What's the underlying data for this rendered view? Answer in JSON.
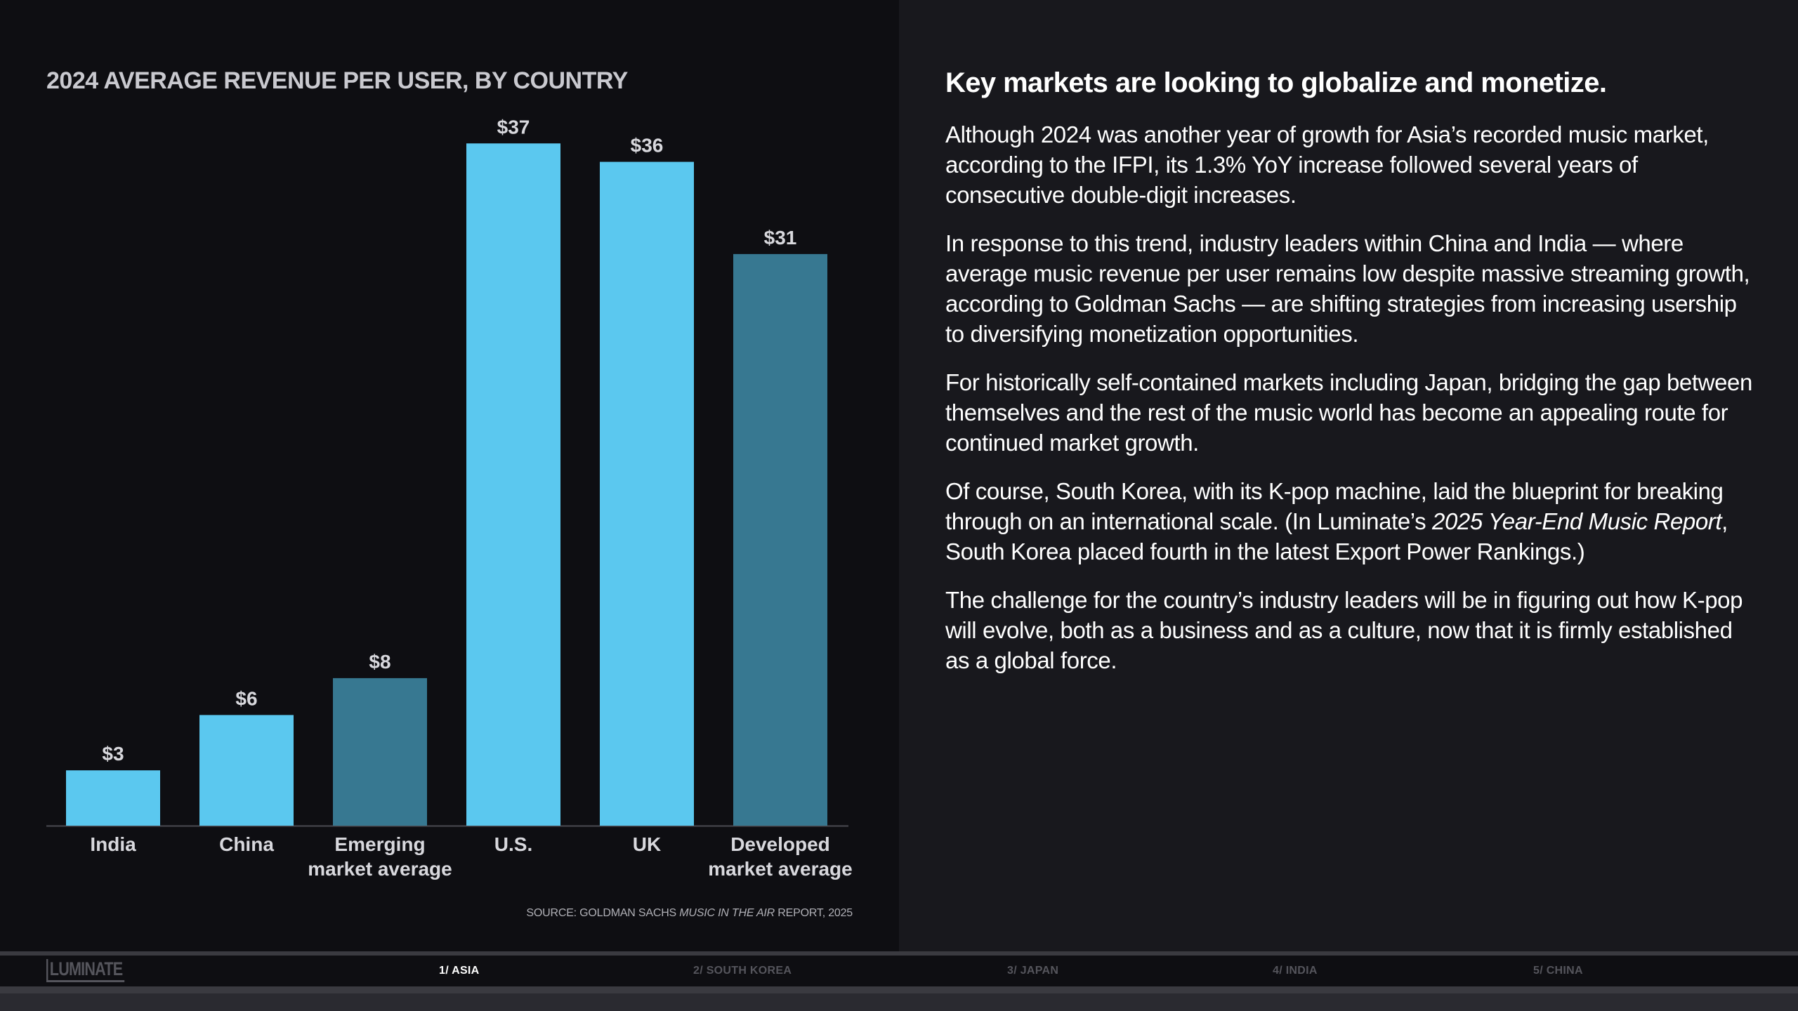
{
  "chart_data": {
    "type": "bar",
    "title": "2024 AVERAGE REVENUE PER USER, BY COUNTRY",
    "categories": [
      [
        "India"
      ],
      [
        "China"
      ],
      [
        "Emerging",
        "market average"
      ],
      [
        "U.S."
      ],
      [
        "UK"
      ],
      [
        "Developed",
        "market average"
      ]
    ],
    "values": [
      3,
      6,
      8,
      37,
      36,
      31
    ],
    "value_labels": [
      "$3",
      "$6",
      "$8",
      "$37",
      "$36",
      "$31"
    ],
    "bar_colors": [
      "#5bc8ef",
      "#5bc8ef",
      "#377891",
      "#5bc8ef",
      "#5bc8ef",
      "#377891"
    ],
    "ylim": [
      0,
      38
    ],
    "xlabel": "",
    "ylabel": "",
    "grid": false,
    "source_prefix": "SOURCE: GOLDMAN SACHS ",
    "source_italic": "MUSIC IN THE AIR",
    "source_suffix": " REPORT, 2025"
  },
  "article": {
    "headline": "Key markets are looking to globalize and monetize.",
    "p1": "Although 2024 was another year of growth for Asia’s recorded music market, according to the IFPI, its 1.3% YoY increase followed several years of consecutive double-digit increases.",
    "p2": "In response to this trend, industry leaders within China and India — where average music revenue per user remains low despite massive streaming growth, according to Goldman Sachs — are shifting strategies from increasing usership to diversifying monetization opportunities.",
    "p3": "For historically self-contained markets including Japan, bridging the gap between themselves and the rest of the music world has become an appealing route for continued market growth.",
    "p4_a": "Of course, South Korea, with its K-pop machine, laid the blueprint for breaking through on an international scale. (In Luminate’s ",
    "p4_italic": "2025 Year-End Music Report",
    "p4_b": ", South Korea placed fourth in the latest Export Power Rankings.)",
    "p5": "The challenge for the country’s industry leaders will be in figuring out how K-pop will evolve, both as a business and as a culture, now that it is firmly established as a global force."
  },
  "footer": {
    "logo": "LUMINATE",
    "tabs": [
      "1/ ASIA",
      "2/ SOUTH KOREA",
      "3/ JAPAN",
      "4/ INDIA",
      "5/ CHINA"
    ],
    "active_tab": "1/ ASIA"
  }
}
